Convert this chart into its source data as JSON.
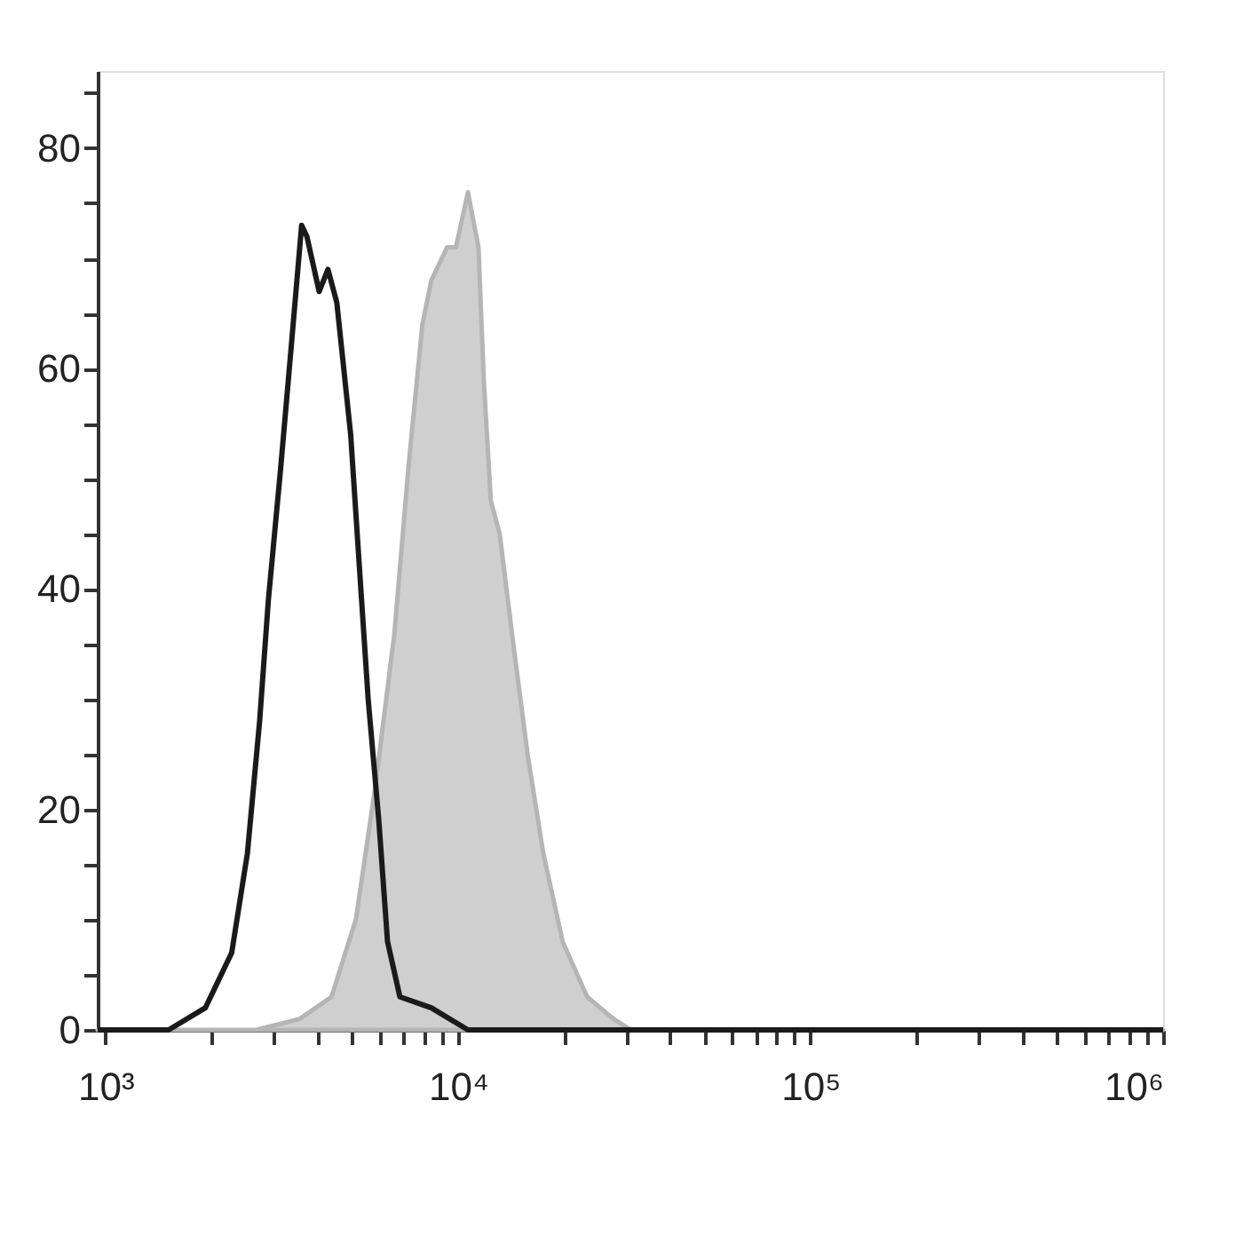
{
  "chart_data": {
    "type": "area",
    "log": "x",
    "grid": false,
    "xlim": [
      950,
      1000000
    ],
    "ylim": [
      0,
      87
    ],
    "xticks": [
      {
        "value": 1000,
        "label": "10³"
      },
      {
        "value": 2000,
        "label": null
      },
      {
        "value": 3000,
        "label": null
      },
      {
        "value": 4000,
        "label": null
      },
      {
        "value": 5000,
        "label": null
      },
      {
        "value": 6000,
        "label": null
      },
      {
        "value": 7000,
        "label": null
      },
      {
        "value": 8000,
        "label": null
      },
      {
        "value": 9000,
        "label": null
      },
      {
        "value": 10000,
        "label": "10⁴"
      },
      {
        "value": 20000,
        "label": null
      },
      {
        "value": 30000,
        "label": null
      },
      {
        "value": 40000,
        "label": null
      },
      {
        "value": 50000,
        "label": null
      },
      {
        "value": 60000,
        "label": null
      },
      {
        "value": 70000,
        "label": null
      },
      {
        "value": 80000,
        "label": null
      },
      {
        "value": 90000,
        "label": null
      },
      {
        "value": 100000,
        "label": "10⁵"
      },
      {
        "value": 200000,
        "label": null
      },
      {
        "value": 300000,
        "label": null
      },
      {
        "value": 400000,
        "label": null
      },
      {
        "value": 500000,
        "label": null
      },
      {
        "value": 600000,
        "label": null
      },
      {
        "value": 700000,
        "label": null
      },
      {
        "value": 800000,
        "label": null
      },
      {
        "value": 900000,
        "label": null
      },
      {
        "value": 1000000,
        "label": "10⁶"
      }
    ],
    "yticks": [
      0,
      {
        "value": 5,
        "label": null
      },
      {
        "value": 10,
        "label": null
      },
      {
        "value": 15,
        "label": null
      },
      20,
      {
        "value": 25,
        "label": null
      },
      {
        "value": 30,
        "label": null
      },
      {
        "value": 35,
        "label": null
      },
      40,
      {
        "value": 45,
        "label": null
      },
      {
        "value": 50,
        "label": null
      },
      {
        "value": 55,
        "label": null
      },
      60,
      {
        "value": 65,
        "label": null
      },
      {
        "value": 70,
        "label": null
      },
      {
        "value": 75,
        "label": null
      },
      80,
      {
        "value": 85,
        "label": null
      }
    ],
    "series": [
      {
        "color": "#cfcfcf",
        "x": [
          950,
          2673,
          3556,
          4375,
          5130,
          5820,
          6600,
          7230,
          7920,
          8400,
          9310,
          9860,
          10670,
          11430,
          11830,
          12390,
          13130,
          14220,
          15750,
          17460,
          19810,
          23240,
          27610,
          30930,
          1000000
        ],
        "values": [
          0,
          0,
          1,
          3,
          10,
          22,
          36,
          51,
          64,
          68,
          71,
          71,
          76,
          71,
          59,
          48,
          45,
          36,
          25,
          16,
          8,
          3,
          1,
          0,
          0
        ]
      },
      {
        "type": "line",
        "color": "#1a1a1a",
        "x": [
          950,
          1510,
          1919,
          2280,
          2526,
          2736,
          2897,
          3140,
          3364,
          3600,
          3725,
          4036,
          4276,
          4530,
          4960,
          5250,
          5560,
          5960,
          6310,
          6840,
          8400,
          10670,
          1000000
        ],
        "values": [
          0,
          0,
          2,
          7,
          16,
          28,
          39,
          51,
          62,
          73,
          72,
          67,
          69,
          66,
          54,
          42,
          30,
          19,
          8,
          3,
          2,
          0,
          0
        ]
      }
    ]
  }
}
